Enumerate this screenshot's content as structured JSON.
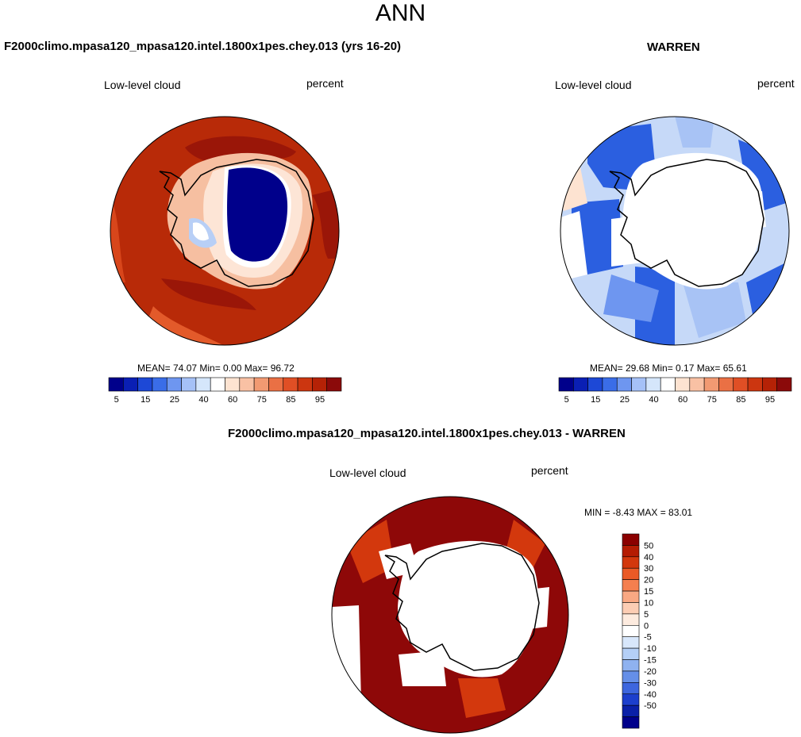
{
  "main_title": "ANN",
  "panels": [
    {
      "title": "F2000climo.mpasa120_mpasa120.intel.1800x1pes.chey.013 (yrs 16-20)",
      "left_label": "Low-level cloud",
      "right_label": "percent",
      "stats_text": "MEAN=  74.07  Min=   0.00  Max=  96.72"
    },
    {
      "title": "WARREN",
      "left_label": "Low-level cloud",
      "right_label": "percent",
      "stats_text": "MEAN=  29.68  Min=   0.17  Max=  65.61"
    },
    {
      "title": "F2000climo.mpasa120_mpasa120.intel.1800x1pes.chey.013 - WARREN",
      "left_label": "Low-level cloud",
      "right_label": "percent",
      "stats_text": "MIN =  -8.43 MAX =  83.01"
    }
  ],
  "colorbar_abs": {
    "colors": [
      "#00008b",
      "#0a1fb4",
      "#1d48d6",
      "#3a6de8",
      "#6e96f0",
      "#a5c1f7",
      "#d5e6fb",
      "#ffffff",
      "#fde3d1",
      "#f9c1a4",
      "#f29a72",
      "#ea7044",
      "#e04f25",
      "#cc3610",
      "#b52206",
      "#8b0a0a"
    ],
    "tick_labels": [
      "5",
      "15",
      "25",
      "40",
      "60",
      "75",
      "85",
      "95"
    ]
  },
  "colorbar_diff": {
    "colors": [
      "#8b0000",
      "#b51c03",
      "#d3380d",
      "#ea5a26",
      "#f47f4f",
      "#f9a883",
      "#fccdb4",
      "#fdebdf",
      "#ffffff",
      "#d8e7fb",
      "#b4cff6",
      "#8fb2f0",
      "#658fe8",
      "#3d66de",
      "#1c3fcd",
      "#0a20a8",
      "#00008b"
    ],
    "tick_labels": [
      "50",
      "40",
      "30",
      "20",
      "15",
      "10",
      "5",
      "0",
      "-5",
      "-10",
      "-15",
      "-20",
      "-30",
      "-40",
      "-50"
    ]
  }
}
